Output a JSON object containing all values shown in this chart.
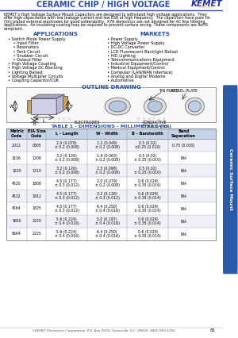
{
  "title": "CERAMIC CHIP / HIGH VOLTAGE",
  "logo_text": "KEMET",
  "logo_sub": "CHARGED",
  "body_lines": [
    "KEMET’s High Voltage Surface Mount Capacitors are designed to withstand high voltage applications.  They",
    "offer high capacitance with low leakage current and low ESR at high frequency.  The capacitors have pure tin",
    "(Sn) plated external electrodes for good solderability.  X7R dielectrics are not designed for AC line filtering",
    "applications.  An insulating coating may be required to prevent surface arcing. These components are RoHS",
    "compliant."
  ],
  "app_title": "APPLICATIONS",
  "app_items": [
    "• Switch Mode Power Supply",
    "    • Input Filter",
    "    • Resonators",
    "    • Tank Circuit",
    "    • Snubber Circuit",
    "    • Output Filter",
    "• High Voltage Coupling",
    "• High Voltage DC Blocking",
    "• Lighting Ballast",
    "• Voltage Multiplier Circuits",
    "• Coupling Capacitor/CUK"
  ],
  "mkt_title": "MARKETS",
  "mkt_items": [
    "• Power Supply",
    "• High Voltage Power Supply",
    "• DC-DC Converter",
    "• LCD Fluorescent Backlight Ballast",
    "• HID Lighting",
    "• Telecommunications Equipment",
    "• Industrial Equipment/Control",
    "• Medical Equipment/Control",
    "• Computer (LAN/WAN Interface)",
    "• Analog and Digital Modems",
    "• Automotive"
  ],
  "outline_title": "OUTLINE DRAWING",
  "table_title": "TABLE 1 - DIMENSIONS - MILLIMETERS (in.)",
  "table_headers": [
    "Metric\nCode",
    "EIA Size\nCode",
    "L - Length",
    "W - Width",
    "B - Bandwidth",
    "Band\nSeparation"
  ],
  "table_rows": [
    [
      "2012",
      "0805",
      "2.0 (0.079)\n± 0.2 (0.008)",
      "1.2 (0.049)\n± 0.2 (0.008)",
      "0.5 (0.02)\n±0.25 (0.010)",
      "0.75 (0.030)"
    ],
    [
      "3216",
      "1206",
      "3.2 (0.126)\n± 0.2 (0.008)",
      "1.6 (0.063)\n± 0.2 (0.008)",
      "0.5 (0.02)\n± 0.25 (0.010)",
      "N/A"
    ],
    [
      "3225",
      "1210",
      "3.2 (0.126)\n± 0.2 (0.008)",
      "2.5 (0.098)\n± 0.2 (0.008)",
      "0.5 (0.02)\n± 0.25 (0.010)",
      "N/A"
    ],
    [
      "4520",
      "1808",
      "4.5 (0.177)\n± 0.3 (0.012)",
      "2.0 (0.079)\n± 0.2 (0.008)",
      "0.6 (0.024)\n± 0.35 (0.014)",
      "N/A"
    ],
    [
      "4532",
      "1812",
      "4.5 (0.177)\n± 0.3 (0.012)",
      "3.2 (0.126)\n± 0.3 (0.012)",
      "0.6 (0.024)\n± 0.35 (0.014)",
      "N/A"
    ],
    [
      "4564",
      "1825",
      "4.5 (0.177)\n± 0.3 (0.012)",
      "6.4 (0.250)\n± 0.4 (0.016)",
      "0.6 (0.024)\n± 0.35 (0.014)",
      "N/A"
    ],
    [
      "5650",
      "2220",
      "5.6 (0.224)\n± 0.4 (0.016)",
      "5.0 (0.197)\n± 0.4 (0.016)",
      "0.6 (0.024)\n± 0.35 (0.014)",
      "N/A"
    ],
    [
      "5664",
      "2225",
      "5.6 (0.224)\n± 0.4 (0.016)",
      "6.4 (0.250)\n± 0.4 (0.016)",
      "0.6 (0.024)\n± 0.35 (0.014)",
      "N/A"
    ]
  ],
  "footer_text": "©KEMET Electronics Corporation, P.O. Box 5928, Greenville, S.C. 29606, (864) 963-6300",
  "page_num": "81",
  "sidebar_text": "Ceramic Surface Mount",
  "blue_color": "#2B4DB0",
  "orange_color": "#F5A623",
  "tab_blue": "#2B5BA8",
  "background": "#FFFFFF"
}
